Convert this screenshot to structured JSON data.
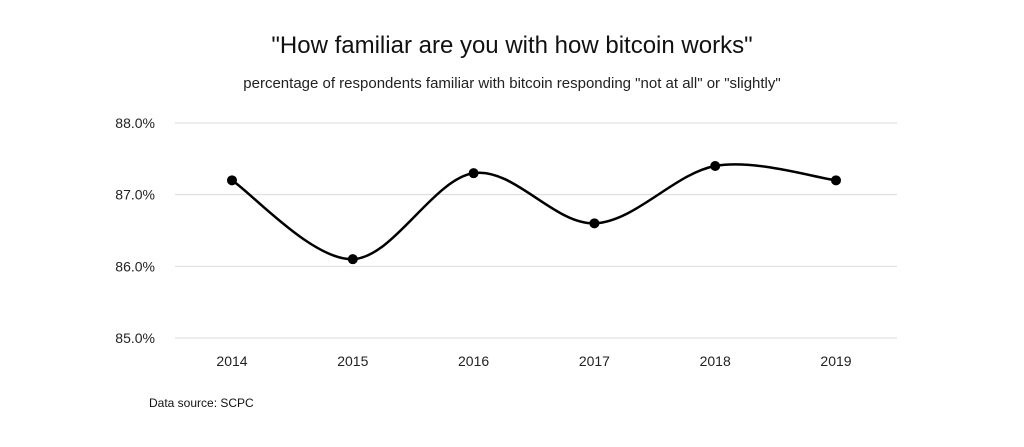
{
  "chart_data": {
    "type": "line",
    "title": "\"How familiar are you with how bitcoin works\"",
    "subtitle": "percentage of respondents familiar with bitcoin responding \"not at all\" or \"slightly\"",
    "categories": [
      "2014",
      "2015",
      "2016",
      "2017",
      "2018",
      "2019"
    ],
    "series": [
      {
        "values": [
          87.2,
          86.1,
          87.3,
          86.6,
          87.4,
          87.2
        ]
      }
    ],
    "ylim": [
      85.0,
      88.0
    ],
    "yticks": [
      85.0,
      86.0,
      87.0,
      88.0
    ],
    "ytick_labels": [
      "85.0%",
      "86.0%",
      "87.0%",
      "88.0%"
    ],
    "grid": "horizontal",
    "line_style": "smooth",
    "markers": true,
    "line_color": "#000000",
    "gridline_color": "#d9d9d9",
    "source": "Data source: SCPC"
  }
}
